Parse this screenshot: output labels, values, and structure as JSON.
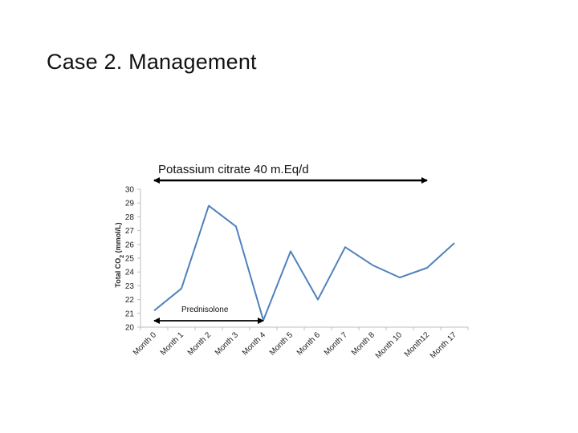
{
  "slide": {
    "title": "Case 2. Management"
  },
  "chart_data": {
    "type": "line",
    "title": "",
    "xlabel": "",
    "ylabel": "Total CO2 (mmol/L)",
    "ylabel_main": "Total CO",
    "ylabel_sub": "2",
    "ylabel_tail": " (mmol/L)",
    "ylim": [
      20,
      30
    ],
    "yticks": [
      20,
      21,
      22,
      23,
      24,
      25,
      26,
      27,
      28,
      29,
      30
    ],
    "grid": false,
    "categories": [
      "Month 0",
      "Month 1",
      "Month 2",
      "Month 3",
      "Month 4",
      "Month 5",
      "Month 6",
      "Month 7",
      "Month 8",
      "Month 10",
      "Month12",
      "Month 17"
    ],
    "series": [
      {
        "values": [
          21.2,
          22.8,
          28.8,
          27.3,
          20.5,
          25.5,
          22.0,
          25.8,
          24.5,
          23.6,
          24.3,
          26.1
        ],
        "color": "#4f81bd"
      }
    ],
    "annotations": [
      {
        "text": "Potassium citrate 40 m.Eq/d",
        "from": "Month 0",
        "to": "Month12"
      },
      {
        "text": "Prednisolone",
        "from": "Month 0",
        "to": "Month 4"
      }
    ]
  }
}
